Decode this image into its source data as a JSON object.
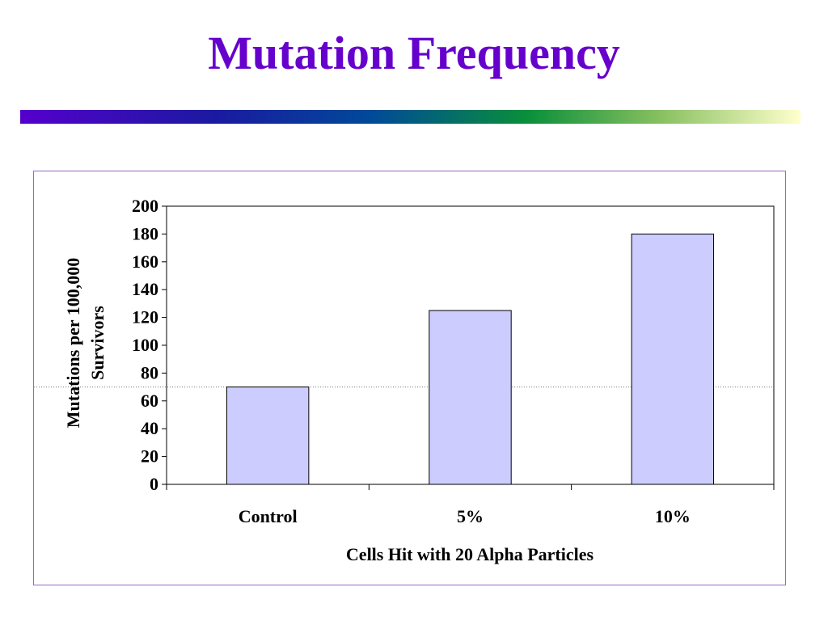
{
  "slide": {
    "title": "Mutation Frequency",
    "title_color": "#6600cc",
    "frame_border_color": "#9966cc"
  },
  "title_bar": {
    "gradient_colors": [
      "#5500cc",
      "#1a1aa0",
      "#004a99",
      "#0a8f3a",
      "#88c060",
      "#ffffcc"
    ]
  },
  "chart_data": {
    "type": "bar",
    "categories": [
      "Control",
      "5%",
      "10%"
    ],
    "series": [
      {
        "values": [
          70,
          125,
          180
        ]
      }
    ],
    "xlabel": "Cells Hit with 20 Alpha Particles",
    "ylabel": "Mutations per 100,000 Survivors",
    "ylabel_lines": [
      "Mutations per 100,000",
      "Survivors"
    ],
    "ylim": [
      0,
      200
    ],
    "yticks": [
      0,
      20,
      40,
      60,
      80,
      100,
      120,
      140,
      160,
      180,
      200
    ],
    "reference_line": 70,
    "grid": false,
    "legend": "none",
    "bar_fill": "#ccccff",
    "bar_stroke": "#000000"
  }
}
